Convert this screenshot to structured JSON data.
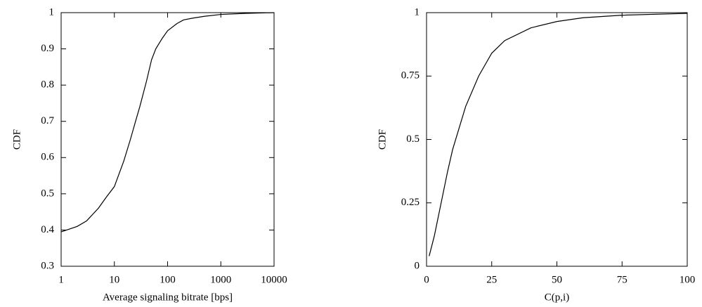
{
  "chart_data": [
    {
      "type": "line",
      "xlabel": "Average signaling bitrate [bps]",
      "ylabel": "CDF",
      "xscale": "log",
      "x": [
        1,
        2,
        3,
        5,
        7,
        10,
        15,
        20,
        25,
        30,
        40,
        50,
        60,
        80,
        100,
        150,
        200,
        300,
        500,
        1000,
        3000,
        10000
      ],
      "series": [
        {
          "color": "#000000",
          "values": [
            0.395,
            0.41,
            0.425,
            0.46,
            0.49,
            0.52,
            0.59,
            0.65,
            0.7,
            0.74,
            0.81,
            0.87,
            0.9,
            0.93,
            0.95,
            0.97,
            0.98,
            0.985,
            0.99,
            0.995,
            0.998,
            1
          ]
        }
      ],
      "xlim": [
        1,
        10000
      ],
      "xticks": [
        1,
        10,
        100,
        1000,
        10000
      ],
      "ylim": [
        0.3,
        1
      ],
      "yticks": [
        0.3,
        0.4,
        0.5,
        0.6,
        0.7,
        0.8,
        0.9,
        1
      ]
    },
    {
      "type": "line",
      "xlabel": "C(p,i)",
      "ylabel": "CDF",
      "x": [
        1,
        3,
        5,
        8,
        10,
        15,
        20,
        25,
        30,
        40,
        50,
        60,
        75,
        100
      ],
      "series": [
        {
          "color": "#000000",
          "values": [
            0.04,
            0.12,
            0.22,
            0.37,
            0.46,
            0.63,
            0.75,
            0.84,
            0.89,
            0.94,
            0.965,
            0.98,
            0.99,
            0.997
          ]
        }
      ],
      "xlim": [
        0,
        100
      ],
      "xticks": [
        0,
        25,
        50,
        75,
        100
      ],
      "ylim": [
        0,
        1
      ],
      "yticks": [
        0,
        0.25,
        0.5,
        0.75,
        1
      ]
    }
  ]
}
